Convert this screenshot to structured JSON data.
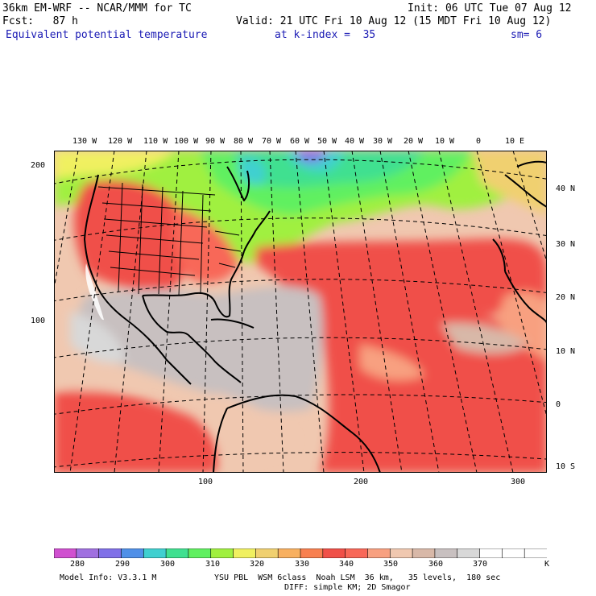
{
  "header": {
    "model_line": "36km EM-WRF -- NCAR/MMM for TC",
    "init_line": "Init: 06 UTC Tue 07 Aug 12",
    "fcst_line": "Fcst:   87 h",
    "valid_line": "Valid: 21 UTC Fri 10 Aug 12 (15 MDT Fri 10 Aug 12)",
    "field_name": "Equivalent potential temperature",
    "level_line": "at k-index =  35",
    "smoothing": "sm= 6"
  },
  "map": {
    "top_lon_labels": [
      "130 W",
      "120 W",
      "110 W",
      "100 W",
      "90 W",
      "80 W",
      "70 W",
      "60 W",
      "50 W",
      "40 W",
      "30 W",
      "20 W",
      "10 W",
      "0",
      "10 E"
    ],
    "right_lat_labels": [
      "40 N",
      "30 N",
      "20 N",
      "10 N",
      "0",
      "10 S"
    ],
    "left_grid_labels": [
      "200",
      "100"
    ],
    "bottom_grid_labels": [
      "100",
      "200",
      "300"
    ]
  },
  "colorbar": {
    "colors": [
      "#d050d0",
      "#a070e0",
      "#8070e8",
      "#5090e8",
      "#40d0d0",
      "#40e090",
      "#60f060",
      "#a0f040",
      "#f0f060",
      "#f0d070",
      "#f8b060",
      "#f88050",
      "#f05048",
      "#f86858",
      "#f8a080",
      "#f0c8b0",
      "#d8b8a8",
      "#c8c0c0",
      "#d8d8d8",
      "#ffffff",
      "#ffffff",
      "#ffffff"
    ],
    "labels": [
      "280",
      "290",
      "300",
      "310",
      "320",
      "330",
      "340",
      "350",
      "360",
      "370"
    ],
    "unit": "K"
  },
  "footer": {
    "model_info": "Model Info: V3.3.1 M",
    "physics": "YSU PBL  WSM 6class  Noah LSM  36 km,   35 levels,  180 sec",
    "diffusion": "DIFF: simple KM; 2D Smagor"
  }
}
